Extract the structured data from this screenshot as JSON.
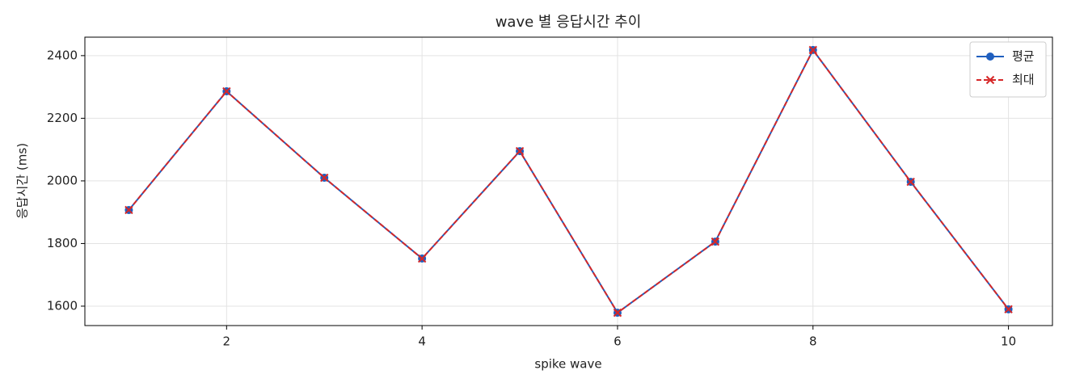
{
  "chart_data": {
    "type": "line",
    "title": "wave 별 응답시간 추이",
    "x_label": "spike wave",
    "y_label": "응답시간 (ms)",
    "x": [
      1,
      2,
      3,
      4,
      5,
      6,
      7,
      8,
      9,
      10
    ],
    "series": [
      {
        "name": "평균",
        "color": "#1f5fbf",
        "marker": "circle",
        "dash": false,
        "values": [
          1907,
          2286,
          2010,
          1752,
          2095,
          1579,
          1806,
          2418,
          1997,
          1590
        ]
      },
      {
        "name": "최대",
        "color": "#d62728",
        "marker": "x",
        "dash": true,
        "values": [
          1907,
          2286,
          2010,
          1752,
          2095,
          1579,
          1806,
          2418,
          1997,
          1590
        ]
      }
    ],
    "xlim": [
      0.55,
      10.45
    ],
    "ylim": [
      1538,
      2459
    ],
    "xticks": [
      2,
      4,
      6,
      8,
      10
    ],
    "yticks": [
      1600,
      1800,
      2000,
      2200,
      2400
    ],
    "grid": true,
    "legend": "upper right"
  }
}
